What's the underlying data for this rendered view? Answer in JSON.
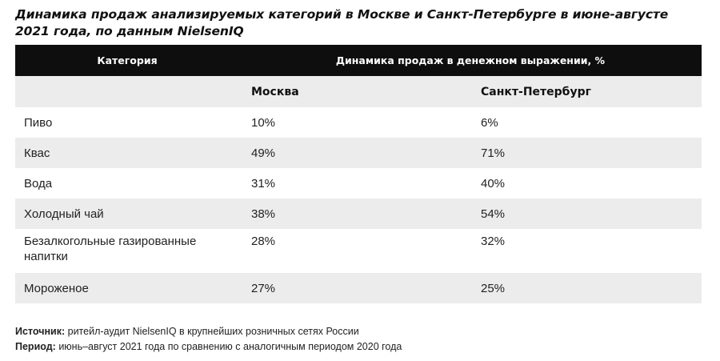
{
  "title": "Динамика продаж анализируемых категорий в Москве и Санкт-Петербурге в июне-августе 2021 года, по данным NielsenIQ",
  "table": {
    "header": {
      "category": "Категория",
      "dynamics": "Динамика продаж в денежном выражении, %"
    },
    "subheader": {
      "moscow": "Москва",
      "spb": "Санкт-Петербург"
    },
    "rows": [
      {
        "category": "Пиво",
        "moscow": "10%",
        "spb": "6%"
      },
      {
        "category": "Квас",
        "moscow": "49%",
        "spb": "71%"
      },
      {
        "category": "Вода",
        "moscow": "31%",
        "spb": "40%"
      },
      {
        "category": "Холодный чай",
        "moscow": "38%",
        "spb": "54%"
      },
      {
        "category": "Безалкогольные газированные напитки",
        "moscow": "28%",
        "spb": "32%"
      },
      {
        "category": "Мороженое",
        "moscow": "27%",
        "spb": "25%"
      }
    ]
  },
  "notes": {
    "source_label": "Источник:",
    "source_text": "ритейл-аудит NielsenIQ в крупнейших розничных сетях России",
    "period_label": "Период:",
    "period_text": "июнь–август 2021 года по сравнению с аналогичным периодом 2020 года"
  }
}
